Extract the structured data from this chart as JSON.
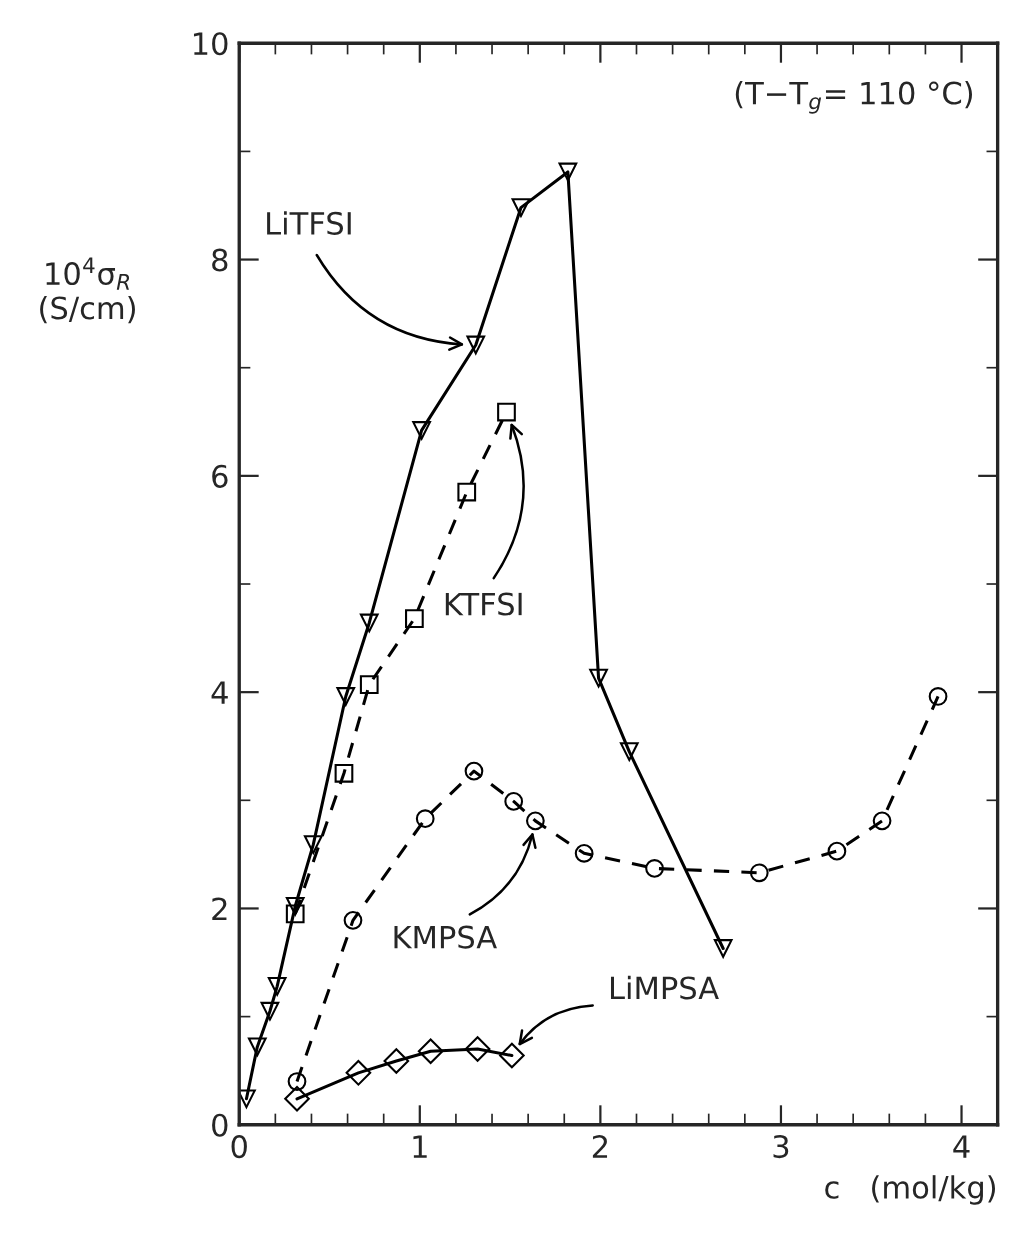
{
  "chart_data": {
    "type": "line",
    "xlabel": "c   (mol/kg)",
    "ylabel": "10$^{4}$σ$_{R}$\n(S/cm)",
    "annotations": [
      "(T−T$_{g}$= 110 °C)"
    ],
    "xlim": [
      0,
      4.2
    ],
    "xticks": [
      0,
      1,
      2,
      3,
      4
    ],
    "ylim": [
      0,
      10
    ],
    "yticks": [
      0,
      2,
      4,
      6,
      8,
      10
    ],
    "grid": false,
    "legend": false,
    "series": [
      {
        "name": "LiTFSI",
        "color": "#000000",
        "marker": "triangle",
        "line_style": "solid",
        "x": [
          0.04,
          0.1,
          0.17,
          0.21,
          0.31,
          0.41,
          0.59,
          0.72,
          1.01,
          1.31,
          1.56,
          1.82,
          1.99,
          2.16,
          2.68
        ],
        "values": [
          0.24,
          0.72,
          1.05,
          1.28,
          2.02,
          2.59,
          3.96,
          4.64,
          6.42,
          7.21,
          8.48,
          8.81,
          4.13,
          3.45,
          1.63
        ]
      },
      {
        "name": "KTFSI",
        "color": "#000000",
        "marker": "square",
        "line_style": "dashed",
        "x": [
          0.31,
          0.58,
          0.72,
          0.97,
          1.26,
          1.48
        ],
        "values": [
          1.95,
          3.25,
          4.07,
          4.68,
          5.85,
          6.59
        ]
      },
      {
        "name": "KMPSA",
        "color": "#000000",
        "marker": "circle",
        "line_style": "dashed",
        "x": [
          0.32,
          0.63,
          1.03,
          1.3,
          1.52,
          1.64,
          1.91,
          2.3,
          2.88,
          3.31,
          3.56,
          3.87
        ],
        "values": [
          0.4,
          1.89,
          2.83,
          3.27,
          2.99,
          2.81,
          2.51,
          2.37,
          2.33,
          2.53,
          2.81,
          3.96
        ]
      },
      {
        "name": "LiMPSA",
        "color": "#000000",
        "marker": "diamond",
        "line_style": "solid",
        "x": [
          0.32,
          0.66,
          0.87,
          1.06,
          1.32,
          1.51
        ],
        "values": [
          0.24,
          0.48,
          0.59,
          0.68,
          0.7,
          0.64
        ]
      }
    ]
  }
}
